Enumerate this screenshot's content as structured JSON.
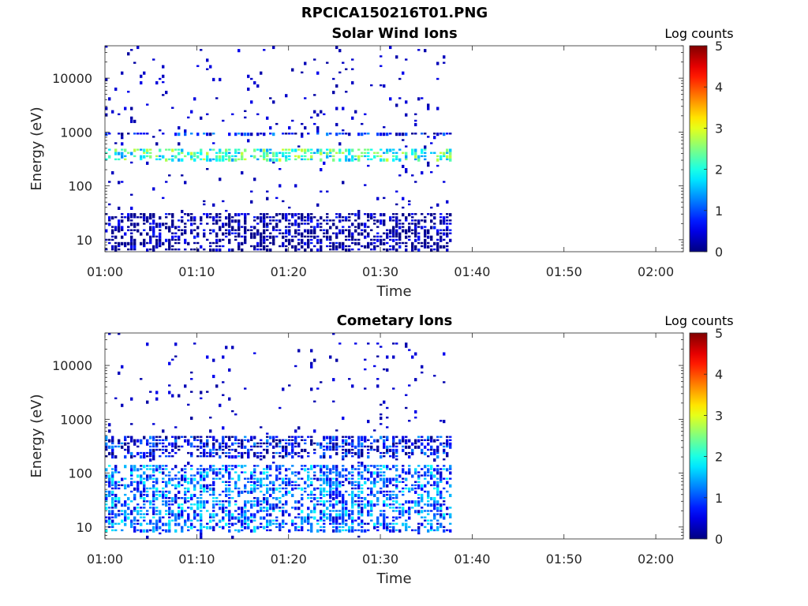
{
  "figure": {
    "title": "RPCICA150216T01.PNG"
  },
  "chart_data": [
    {
      "type": "heatmap",
      "title": "Solar Wind Ions",
      "xlabel": "Time",
      "ylabel": "Energy (eV)",
      "x_scale": "time",
      "y_scale": "log",
      "xlim": [
        "01:00",
        "02:03"
      ],
      "ylim": [
        6,
        40000
      ],
      "x_ticks": [
        "01:00",
        "01:10",
        "01:20",
        "01:30",
        "01:40",
        "01:50",
        "02:00"
      ],
      "y_ticks": [
        10,
        100,
        1000,
        10000
      ],
      "y_tick_labels": [
        "10",
        "100",
        "1000",
        "10000"
      ],
      "data_range": [
        "01:00",
        "01:37"
      ],
      "colorbar": {
        "label": "Log counts",
        "min": 0,
        "max": 5,
        "ticks": [
          "0",
          "1",
          "2",
          "3",
          "4",
          "5"
        ],
        "colormap": "jet"
      },
      "features": [
        {
          "start": "01:00",
          "end": "01:37",
          "energy": [
            300,
            500
          ],
          "level": 2.5
        },
        {
          "start": "01:00",
          "end": "01:37",
          "energy": [
            800,
            1000
          ],
          "level": 1.0
        },
        {
          "start": "01:00",
          "end": "01:37",
          "energy": [
            6,
            30
          ],
          "level": 0.4
        }
      ]
    },
    {
      "type": "heatmap",
      "title": "Cometary Ions",
      "xlabel": "Time",
      "ylabel": "Energy (eV)",
      "x_scale": "time",
      "y_scale": "log",
      "xlim": [
        "01:00",
        "02:03"
      ],
      "ylim": [
        6,
        40000
      ],
      "x_ticks": [
        "01:00",
        "01:10",
        "01:20",
        "01:30",
        "01:40",
        "01:50",
        "02:00"
      ],
      "y_ticks": [
        10,
        100,
        1000,
        10000
      ],
      "y_tick_labels": [
        "10",
        "100",
        "1000",
        "10000"
      ],
      "data_range": [
        "01:00",
        "01:37"
      ],
      "colorbar": {
        "label": "Log counts",
        "min": 0,
        "max": 5,
        "ticks": [
          "0",
          "1",
          "2",
          "3",
          "4",
          "5"
        ],
        "colormap": "jet"
      },
      "features": [
        {
          "start": "01:00",
          "end": "01:37",
          "energy": [
            8,
            150
          ],
          "level": 1.5
        },
        {
          "start": "01:00",
          "end": "01:37",
          "energy": [
            200,
            500
          ],
          "level": 1.0
        }
      ]
    }
  ]
}
